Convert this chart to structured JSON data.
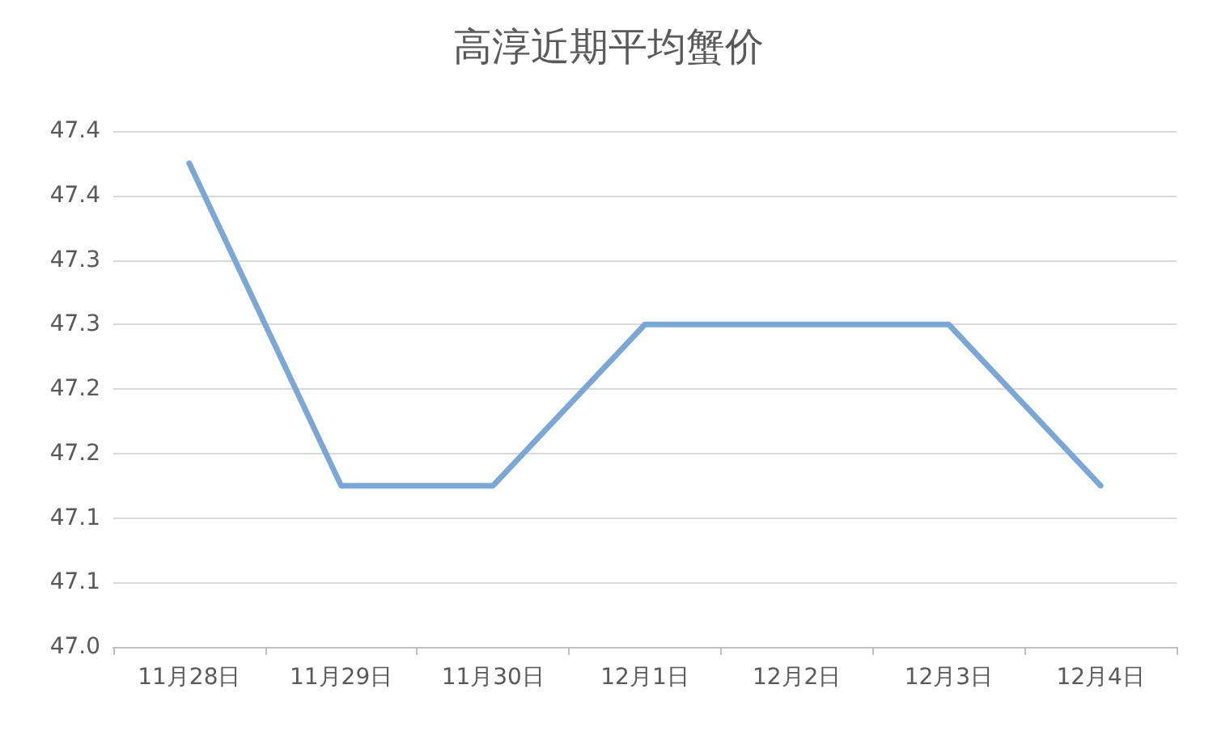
{
  "chart_data": {
    "type": "line",
    "title": "高淳近期平均蟹价",
    "categories": [
      "11月28日",
      "11月29日",
      "11月30日",
      "12月1日",
      "12月2日",
      "12月3日",
      "12月4日"
    ],
    "series": [
      {
        "color": "#7ba7d6",
        "values": [
          47.375,
          47.125,
          47.125,
          47.25,
          47.25,
          47.25,
          47.125
        ]
      }
    ],
    "ylim": [
      47.0,
      47.4
    ],
    "yticks": [
      {
        "value": 47.0,
        "label": "47.0"
      },
      {
        "value": 47.05,
        "label": "47.1"
      },
      {
        "value": 47.1,
        "label": "47.1"
      },
      {
        "value": 47.15,
        "label": "47.2"
      },
      {
        "value": 47.2,
        "label": "47.2"
      },
      {
        "value": 47.25,
        "label": "47.3"
      },
      {
        "value": 47.3,
        "label": "47.3"
      },
      {
        "value": 47.35,
        "label": "47.4"
      },
      {
        "value": 47.4,
        "label": "47.4"
      }
    ],
    "grid": "y",
    "marker": "none",
    "line_style": "solid"
  }
}
